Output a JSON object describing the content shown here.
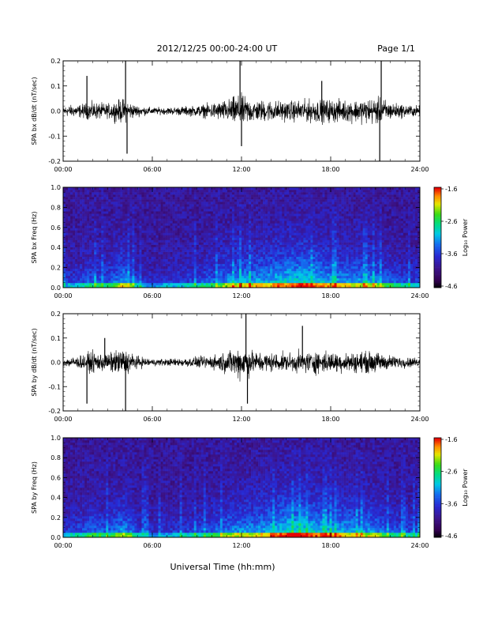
{
  "header": {
    "title": "2012/12/25  00:00-24:00 UT",
    "page_label": "Page 1/1"
  },
  "footer": {
    "xlabel": "Universal Time (hh:mm)"
  },
  "colorbar": {
    "label": "Log₁₀ Power",
    "ticks": [
      "-1.6",
      "-2.6",
      "-3.6",
      "-4.6"
    ],
    "range": [
      -4.6,
      -1.6
    ]
  },
  "time_ticks": [
    "00:00",
    "06:00",
    "12:00",
    "18:00",
    "24:00"
  ],
  "chart_data": [
    {
      "type": "line",
      "panel": "bx-dbdt",
      "ylabel": "SPA bx dB/dt (nT/sec)",
      "xlim": [
        0,
        24
      ],
      "ylim": [
        -0.2,
        0.2
      ],
      "yticks": [
        "0.2",
        "0.1",
        "0.0",
        "-0.1",
        "-0.2"
      ],
      "envelope": {
        "hours": [
          0,
          1,
          2,
          3,
          4,
          4.5,
          5,
          6,
          7,
          8,
          9,
          10,
          11,
          11.5,
          12,
          12.5,
          13,
          14,
          15,
          16,
          17,
          18,
          19,
          20,
          21,
          21.5,
          22,
          23,
          24
        ],
        "amplitude": [
          0.03,
          0.035,
          0.05,
          0.04,
          0.07,
          0.05,
          0.03,
          0.02,
          0.02,
          0.025,
          0.03,
          0.045,
          0.06,
          0.08,
          0.09,
          0.07,
          0.06,
          0.06,
          0.055,
          0.06,
          0.065,
          0.065,
          0.06,
          0.065,
          0.075,
          0.07,
          0.05,
          0.035,
          0.03
        ]
      },
      "spikes": [
        {
          "hour": 1.6,
          "value": 0.14
        },
        {
          "hour": 4.2,
          "value": 0.2
        },
        {
          "hour": 4.3,
          "value": -0.17
        },
        {
          "hour": 11.9,
          "value": 0.2
        },
        {
          "hour": 12.0,
          "value": -0.14
        },
        {
          "hour": 17.4,
          "value": 0.12
        },
        {
          "hour": 21.4,
          "value": 0.2
        },
        {
          "hour": 21.3,
          "value": -0.2
        }
      ]
    },
    {
      "type": "heatmap",
      "panel": "bx-spectrogram",
      "ylabel": "SPA bx Freq (Hz)",
      "xlim": [
        0,
        24
      ],
      "ylim": [
        0,
        1.0
      ],
      "yticks": [
        "1.0",
        "0.8",
        "0.6",
        "0.4",
        "0.2",
        "0.0"
      ],
      "zlim": [
        -4.6,
        -1.6
      ],
      "activity_hours": [
        0,
        1,
        2,
        3,
        4,
        4.5,
        5,
        6,
        7,
        8,
        9,
        10,
        11,
        12,
        13,
        14,
        15,
        16,
        17,
        18,
        19,
        20,
        21,
        22,
        23,
        24
      ],
      "activity": [
        0.3,
        0.35,
        0.5,
        0.45,
        0.7,
        0.6,
        0.35,
        0.25,
        0.3,
        0.35,
        0.4,
        0.5,
        0.65,
        0.75,
        0.7,
        0.8,
        0.85,
        0.9,
        0.85,
        0.75,
        0.7,
        0.7,
        0.65,
        0.5,
        0.4,
        0.35
      ]
    },
    {
      "type": "line",
      "panel": "by-dbdt",
      "ylabel": "SPA by dB/dt (nT/sec)",
      "xlim": [
        0,
        24
      ],
      "ylim": [
        -0.2,
        0.2
      ],
      "yticks": [
        "0.2",
        "0.1",
        "0.0",
        "-0.1",
        "-0.2"
      ],
      "envelope": {
        "hours": [
          0,
          1,
          2,
          3,
          4,
          4.5,
          5,
          6,
          7,
          8,
          9,
          10,
          11,
          11.5,
          12,
          12.5,
          13,
          14,
          15,
          16,
          17,
          18,
          19,
          20,
          21,
          22,
          23,
          24
        ],
        "amplitude": [
          0.025,
          0.035,
          0.06,
          0.05,
          0.08,
          0.06,
          0.035,
          0.02,
          0.02,
          0.025,
          0.03,
          0.04,
          0.06,
          0.08,
          0.1,
          0.08,
          0.06,
          0.055,
          0.05,
          0.06,
          0.065,
          0.06,
          0.055,
          0.06,
          0.06,
          0.04,
          0.03,
          0.025
        ]
      },
      "spikes": [
        {
          "hour": 2.8,
          "value": 0.1
        },
        {
          "hour": 4.2,
          "value": -0.2
        },
        {
          "hour": 12.3,
          "value": 0.2
        },
        {
          "hour": 12.4,
          "value": -0.17
        },
        {
          "hour": 16.1,
          "value": 0.15
        },
        {
          "hour": 1.6,
          "value": -0.17
        }
      ]
    },
    {
      "type": "heatmap",
      "panel": "by-spectrogram",
      "ylabel": "SPA by Freq (Hz)",
      "xlim": [
        0,
        24
      ],
      "ylim": [
        0,
        1.0
      ],
      "yticks": [
        "1.0",
        "0.8",
        "0.6",
        "0.4",
        "0.2",
        "0.0"
      ],
      "zlim": [
        -4.6,
        -1.6
      ],
      "activity_hours": [
        0,
        1,
        2,
        3,
        4,
        4.5,
        5,
        6,
        7,
        8,
        9,
        10,
        11,
        12,
        13,
        14,
        15,
        16,
        17,
        18,
        19,
        20,
        21,
        22,
        23,
        24
      ],
      "activity": [
        0.35,
        0.4,
        0.55,
        0.45,
        0.7,
        0.6,
        0.35,
        0.25,
        0.3,
        0.35,
        0.4,
        0.5,
        0.6,
        0.7,
        0.7,
        0.8,
        0.9,
        0.95,
        0.85,
        0.8,
        0.75,
        0.7,
        0.65,
        0.5,
        0.45,
        0.4
      ]
    }
  ]
}
